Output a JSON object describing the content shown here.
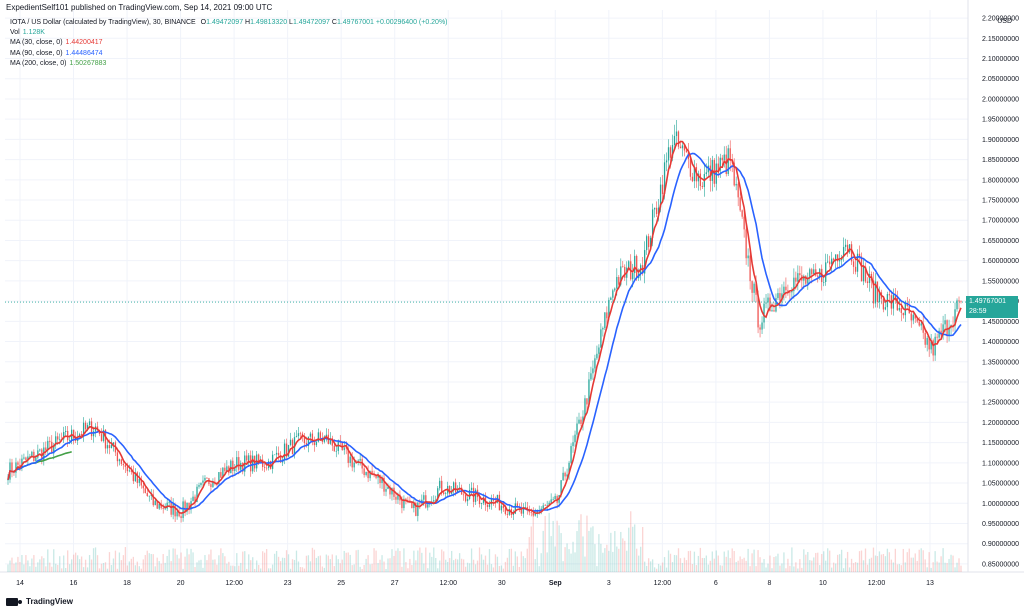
{
  "header": {
    "publisher": "ExpedientSelf101 published on TradingView.com, Sep 14, 2021 09:00 UTC"
  },
  "legend": {
    "symbol": "IOTA / US Dollar (calculated by TradingView), 30, BINANCE",
    "open_label": "O",
    "open": "1.49472097",
    "high_label": "H",
    "high": "1.49813320",
    "low_label": "L",
    "low": "1.49472097",
    "close_label": "C",
    "close": "1.49767001",
    "change": "+0.00296400 (+0.20%)",
    "vol_label": "Vol",
    "vol": "1.128K",
    "ma30_label": "MA (30, close, 0)",
    "ma30": "1.44200417",
    "ma90_label": "MA (90, close, 0)",
    "ma90": "1.44486474",
    "ma200_label": "MA (200, close, 0)",
    "ma200": "1.50267883"
  },
  "price_tag": {
    "price": "1.49767001",
    "countdown": "28:59"
  },
  "axis": {
    "currency": "USD"
  },
  "footer": {
    "brand": "TradingView"
  },
  "colors": {
    "up": "#26a69a",
    "down": "#ef5350",
    "ma30": "#e53935",
    "ma90": "#2962ff",
    "ma200": "#43a047",
    "grid": "#f0f3fa",
    "price_line": "#26a69a"
  },
  "chart_data": {
    "type": "candlestick",
    "title": "IOTA / US Dollar (calculated by TradingView), 30, BINANCE",
    "ylabel": "USD",
    "ylim": [
      0.83,
      2.22
    ],
    "y_ticks": [
      "2.20000000",
      "2.15000000",
      "2.10000000",
      "2.05000000",
      "2.00000000",
      "1.95000000",
      "1.90000000",
      "1.85000000",
      "1.80000000",
      "1.75000000",
      "1.70000000",
      "1.65000000",
      "1.60000000",
      "1.55000000",
      "1.50000000",
      "1.45000000",
      "1.40000000",
      "1.35000000",
      "1.30000000",
      "1.25000000",
      "1.20000000",
      "1.15000000",
      "1.10000000",
      "1.05000000",
      "1.00000000",
      "0.95000000",
      "0.90000000",
      "0.85000000"
    ],
    "x_ticks": [
      "14",
      "16",
      "18",
      "20",
      "12:00",
      "23",
      "25",
      "27",
      "12:00",
      "30",
      "Sep",
      "3",
      "12:00",
      "6",
      "8",
      "10",
      "12:00",
      "13"
    ],
    "close_anchors": {
      "x": [
        "Aug 13",
        "Aug 14",
        "Aug 15",
        "Aug 16",
        "Aug 17",
        "Aug 18",
        "Aug 19",
        "Aug 20",
        "Aug 21",
        "Aug 22",
        "Aug 23",
        "Aug 24",
        "Aug 25",
        "Aug 26",
        "Aug 27",
        "Aug 28",
        "Aug 29",
        "Aug 30",
        "Aug 31",
        "Sep 1",
        "Sep 2",
        "Sep 3",
        "Sep 4",
        "Sep 5",
        "Sep 6",
        "Sep 7",
        "Sep 7 12:00",
        "Sep 8",
        "Sep 9",
        "Sep 10",
        "Sep 11",
        "Sep 12",
        "Sep 13",
        "Sep 14"
      ],
      "y": [
        1.08,
        1.12,
        1.16,
        1.19,
        1.1,
        1.0,
        0.98,
        1.06,
        1.1,
        1.1,
        1.15,
        1.16,
        1.1,
        1.05,
        0.98,
        1.04,
        1.02,
        1.0,
        0.97,
        1.0,
        1.25,
        1.55,
        1.6,
        1.9,
        1.8,
        1.85,
        1.45,
        1.55,
        1.55,
        1.65,
        1.52,
        1.48,
        1.38,
        1.5
      ]
    },
    "series": [
      {
        "name": "MA (30, close, 0)",
        "last": 1.44200417
      },
      {
        "name": "MA (90, close, 0)",
        "last": 1.44486474
      },
      {
        "name": "MA (200, close, 0)",
        "last": 1.50267883
      }
    ],
    "last_price": 1.49767001,
    "grid": true
  }
}
